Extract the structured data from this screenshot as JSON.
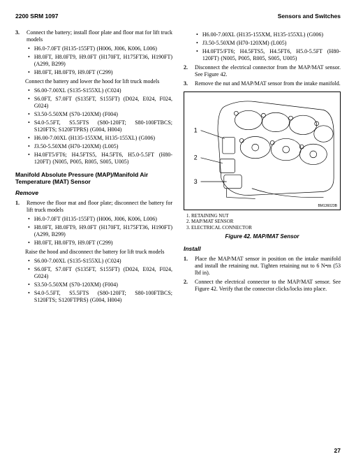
{
  "header": {
    "left": "2200 SRM 1097",
    "right": "Sensors and Switches"
  },
  "left": {
    "item3": {
      "num": "3.",
      "text": "Connect the battery; install floor plate and floor mat for lift truck models"
    },
    "b3": [
      "H6.0-7.0FT (H135-155FT) (H006, J006, K006, L006)",
      "H8.0FT, H8.0FT9, H9.0FT (H170FT, H175FT36, H190FT) (A299, B299)",
      "H8.0FT, H8.0FT9, H9.0FT (C299)"
    ],
    "p3": "Connect the battery and lower the hood for lift truck models",
    "b3b": [
      "S6.00-7.00XL (S135-S155XL) (C024)",
      "S6.0FT, S7.0FT (S135FT, S155FT) (D024, E024, F024, G024)",
      "S3.50-5.50XM (S70-120XM) (F004)",
      "S4.0-5.5FT, S5.5FTS (S80-120FT; S80-100FTBCS; S120FTS; S120FTPRS) (G004, H004)",
      "H6.00-7.00XL (H135-155XM, H135-155XL) (G006)",
      "J3.50-5.50XM (H70-120XM) (L005)",
      "H4.0FT5/FT6; H4.5FTS5, H4.5FT6, H5.0-5.5FT (H80-120FT) (N005, P005, R005, S005, U005)"
    ],
    "h3": "Manifold Absolute Pressure (MAP)/Manifold Air Temperature (MAT) Sensor",
    "h4r": "Remove",
    "item1": {
      "num": "1.",
      "text": "Remove the floor mat and floor plate; disconnect the battery for lift truck models"
    },
    "b1": [
      "H6.0-7.0FT (H135-155FT) (H006, J006, K006, L006)",
      "H8.0FT, H8.0FT9, H9.0FT (H170FT, H175FT36, H190FT) (A299, B299)",
      "H8.0FT, H8.0FT9, H9.0FT (C299)"
    ],
    "p1": "Raise the hood and disconnect the battery for lift truck models",
    "b1b": [
      "S6.00-7.00XL (S135-S155XL) (C024)",
      "S6.0FT, S7.0FT (S135FT, S155FT) (D024, E024, F024, G024)",
      "S3.50-5.50XM (S70-120XM) (F004)",
      "S4.0-5.5FT, S5.5FTS (S80-120FT; S80-100FTBCS; S120FTS; S120FTPRS) (G004, H004)"
    ]
  },
  "right": {
    "bTop": [
      "H6.00-7.00XL (H135-155XM, H135-155XL) (G006)",
      "J3.50-5.50XM (H70-120XM) (L005)",
      "H4.0FT5/FT6; H4.5FTS5, H4.5FT6, H5.0-5.5FT (H80-120FT) (N005, P005, R005, S005, U005)"
    ],
    "item2": {
      "num": "2.",
      "text": "Disconnect the electrical connector from the MAP/MAT sensor. See Figure 42."
    },
    "item3": {
      "num": "3.",
      "text": "Remove the nut and MAP/MAT sensor from the intake manifold."
    },
    "legend": [
      "1.  RETAINING NUT",
      "2.  MAP/MAT SENSOR",
      "3.  ELECTRICAL CONNECTOR"
    ],
    "caption": "Figure 42. MAP/MAT Sensor",
    "figId": "BM136023B",
    "h4i": "Install",
    "itemI1": {
      "num": "1.",
      "text": "Place the MAP/MAT sensor in position on the intake manifold and install the retaining nut. Tighten retaining nut to 6 N•m (53 lbf in)."
    },
    "itemI2": {
      "num": "2.",
      "text": "Connect the electrical connector to the MAP/MAT sensor. See Figure 42. Verify that the connector clicks/locks into place."
    }
  },
  "pagenum": "27",
  "style": {
    "bullet_char": "•",
    "colors": {
      "text": "#000000",
      "bg": "#ffffff",
      "rule": "#000000"
    }
  }
}
